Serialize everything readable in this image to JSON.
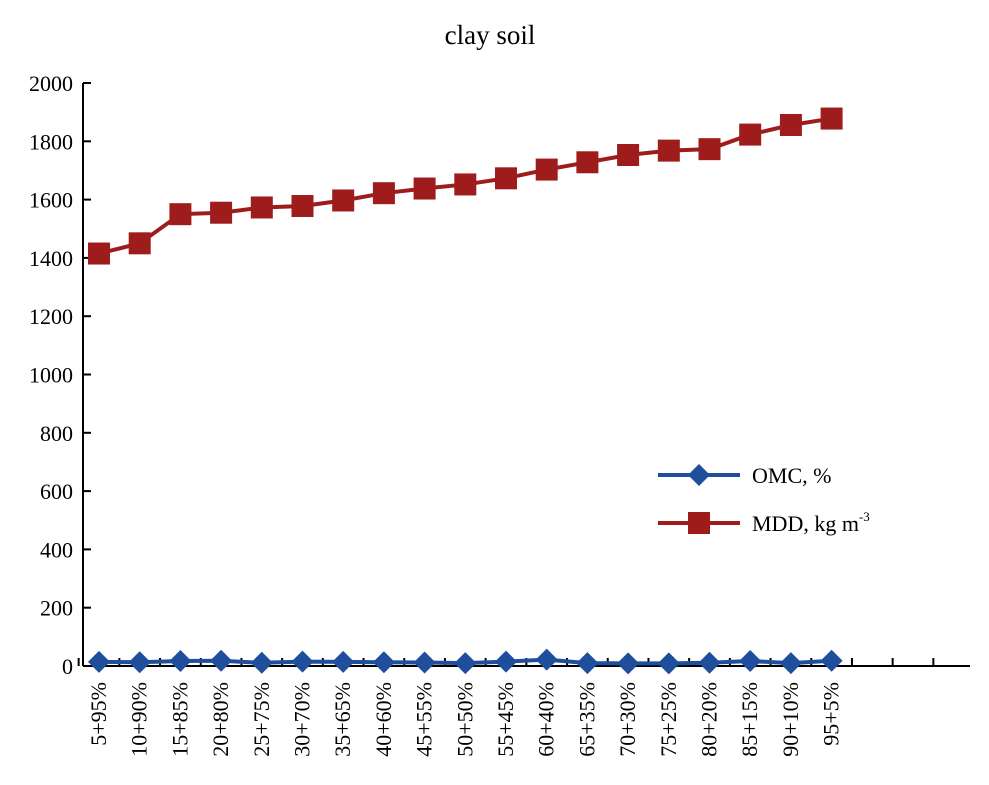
{
  "chart_data": {
    "type": "line",
    "title": "clay soil",
    "xlabel": "",
    "ylabel": "",
    "ylim": [
      0,
      2000
    ],
    "yticks": [
      0,
      200,
      400,
      600,
      800,
      1000,
      1200,
      1400,
      1600,
      1800,
      2000
    ],
    "grid": false,
    "legend_position": "right-middle",
    "categories": [
      "5+95%",
      "10+90%",
      "15+85%",
      "20+80%",
      "25+75%",
      "30+70%",
      "35+65%",
      "40+60%",
      "45+55%",
      "50+50%",
      "55+45%",
      "60+40%",
      "65+35%",
      "70+30%",
      "75+25%",
      "80+20%",
      "85+15%",
      "90+10%",
      "95+5%"
    ],
    "series": [
      {
        "name": "OMC, %",
        "color": "#1F4E9C",
        "marker": "diamond",
        "values": [
          14,
          13,
          17,
          18,
          11,
          15,
          14,
          13,
          12,
          10,
          15,
          22,
          10,
          9,
          9,
          11,
          17,
          10,
          18
        ]
      },
      {
        "name": "MDD, kg m",
        "name_superscript": "-3",
        "color": "#9E1C1C",
        "marker": "square",
        "values": [
          1415,
          1450,
          1550,
          1555,
          1573,
          1578,
          1597,
          1622,
          1638,
          1652,
          1673,
          1703,
          1728,
          1753,
          1768,
          1773,
          1823,
          1856,
          1878
        ]
      }
    ]
  }
}
